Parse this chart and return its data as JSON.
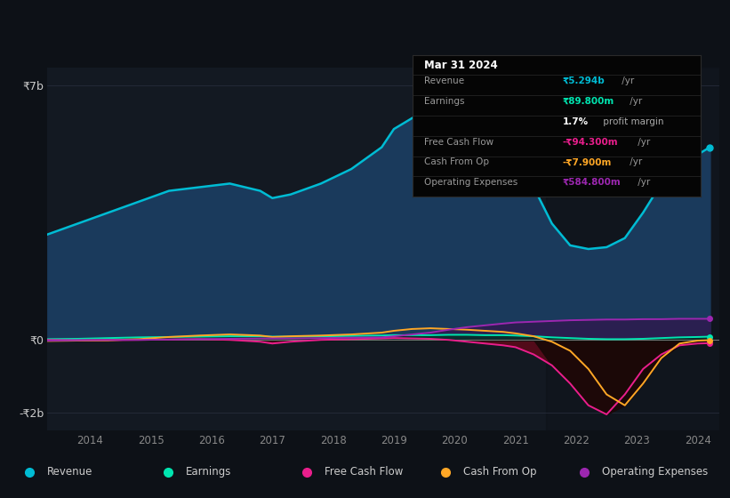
{
  "bg_color": "#0d1117",
  "plot_bg_color": "#131922",
  "ylabel_7b": "₹7b",
  "ylabel_0": "₹0",
  "ylabel_neg2b": "-₹2b",
  "years": [
    2013.3,
    2013.8,
    2014.3,
    2014.8,
    2015.3,
    2015.8,
    2016.3,
    2016.8,
    2017.0,
    2017.3,
    2017.8,
    2018.3,
    2018.8,
    2019.0,
    2019.3,
    2019.6,
    2019.9,
    2020.2,
    2020.5,
    2020.8,
    2021.0,
    2021.3,
    2021.6,
    2021.9,
    2022.2,
    2022.5,
    2022.8,
    2023.1,
    2023.4,
    2023.7,
    2024.0,
    2024.2
  ],
  "revenue": [
    2.9,
    3.2,
    3.5,
    3.8,
    4.1,
    4.2,
    4.3,
    4.1,
    3.9,
    4.0,
    4.3,
    4.7,
    5.3,
    5.8,
    6.1,
    6.4,
    6.55,
    6.6,
    6.5,
    6.3,
    5.5,
    4.2,
    3.2,
    2.6,
    2.5,
    2.55,
    2.8,
    3.5,
    4.3,
    4.8,
    5.1,
    5.3
  ],
  "earnings": [
    0.02,
    0.03,
    0.05,
    0.07,
    0.08,
    0.09,
    0.1,
    0.1,
    0.09,
    0.09,
    0.1,
    0.11,
    0.12,
    0.13,
    0.13,
    0.13,
    0.14,
    0.14,
    0.13,
    0.13,
    0.12,
    0.1,
    0.07,
    0.05,
    0.03,
    0.02,
    0.02,
    0.03,
    0.05,
    0.07,
    0.08,
    0.09
  ],
  "free_cash_flow": [
    0.0,
    -0.01,
    -0.01,
    0.0,
    0.01,
    0.02,
    0.0,
    -0.05,
    -0.1,
    -0.05,
    0.0,
    0.02,
    0.04,
    0.05,
    0.04,
    0.03,
    0.0,
    -0.05,
    -0.1,
    -0.15,
    -0.2,
    -0.4,
    -0.7,
    -1.2,
    -1.8,
    -2.05,
    -1.5,
    -0.8,
    -0.4,
    -0.15,
    -0.1,
    -0.09
  ],
  "cash_from_op": [
    -0.03,
    -0.02,
    -0.01,
    0.02,
    0.08,
    0.12,
    0.15,
    0.12,
    0.08,
    0.1,
    0.12,
    0.15,
    0.2,
    0.25,
    0.3,
    0.32,
    0.3,
    0.28,
    0.25,
    0.22,
    0.18,
    0.1,
    -0.05,
    -0.3,
    -0.8,
    -1.5,
    -1.8,
    -1.2,
    -0.5,
    -0.1,
    -0.02,
    -0.008
  ],
  "operating_expenses": [
    -0.02,
    -0.01,
    0.0,
    0.0,
    0.01,
    0.02,
    0.03,
    0.04,
    0.04,
    0.04,
    0.05,
    0.06,
    0.07,
    0.1,
    0.15,
    0.2,
    0.28,
    0.35,
    0.4,
    0.45,
    0.48,
    0.5,
    0.52,
    0.54,
    0.55,
    0.56,
    0.56,
    0.57,
    0.57,
    0.58,
    0.58,
    0.58
  ],
  "revenue_color": "#00bcd4",
  "earnings_color": "#00e5b0",
  "free_cash_flow_color": "#e91e8c",
  "cash_from_op_color": "#ffa726",
  "operating_expenses_color": "#9c27b0",
  "revenue_fill": "#1a3a5c",
  "fcf_fill": "#5a0a1a",
  "cashop_fill": "#2a1800",
  "legend_labels": [
    "Revenue",
    "Earnings",
    "Free Cash Flow",
    "Cash From Op",
    "Operating Expenses"
  ],
  "info_title": "Mar 31 2024",
  "info_revenue_label": "Revenue",
  "info_revenue_value": "₹5.294b",
  "info_earnings_label": "Earnings",
  "info_earnings_value": "₹89.800m",
  "info_margin": "1.7%",
  "info_margin_text": " profit margin",
  "info_fcf_label": "Free Cash Flow",
  "info_fcf_value": "-₹94.300m",
  "info_cashop_label": "Cash From Op",
  "info_cashop_value": "-₹7.900m",
  "info_opex_label": "Operating Expenses",
  "info_opex_value": "₹584.800m",
  "x_ticks": [
    2014,
    2015,
    2016,
    2017,
    2018,
    2019,
    2020,
    2021,
    2022,
    2023,
    2024
  ],
  "ylim_min": -2.5,
  "ylim_max": 7.5,
  "highlight_x": 2021.5
}
